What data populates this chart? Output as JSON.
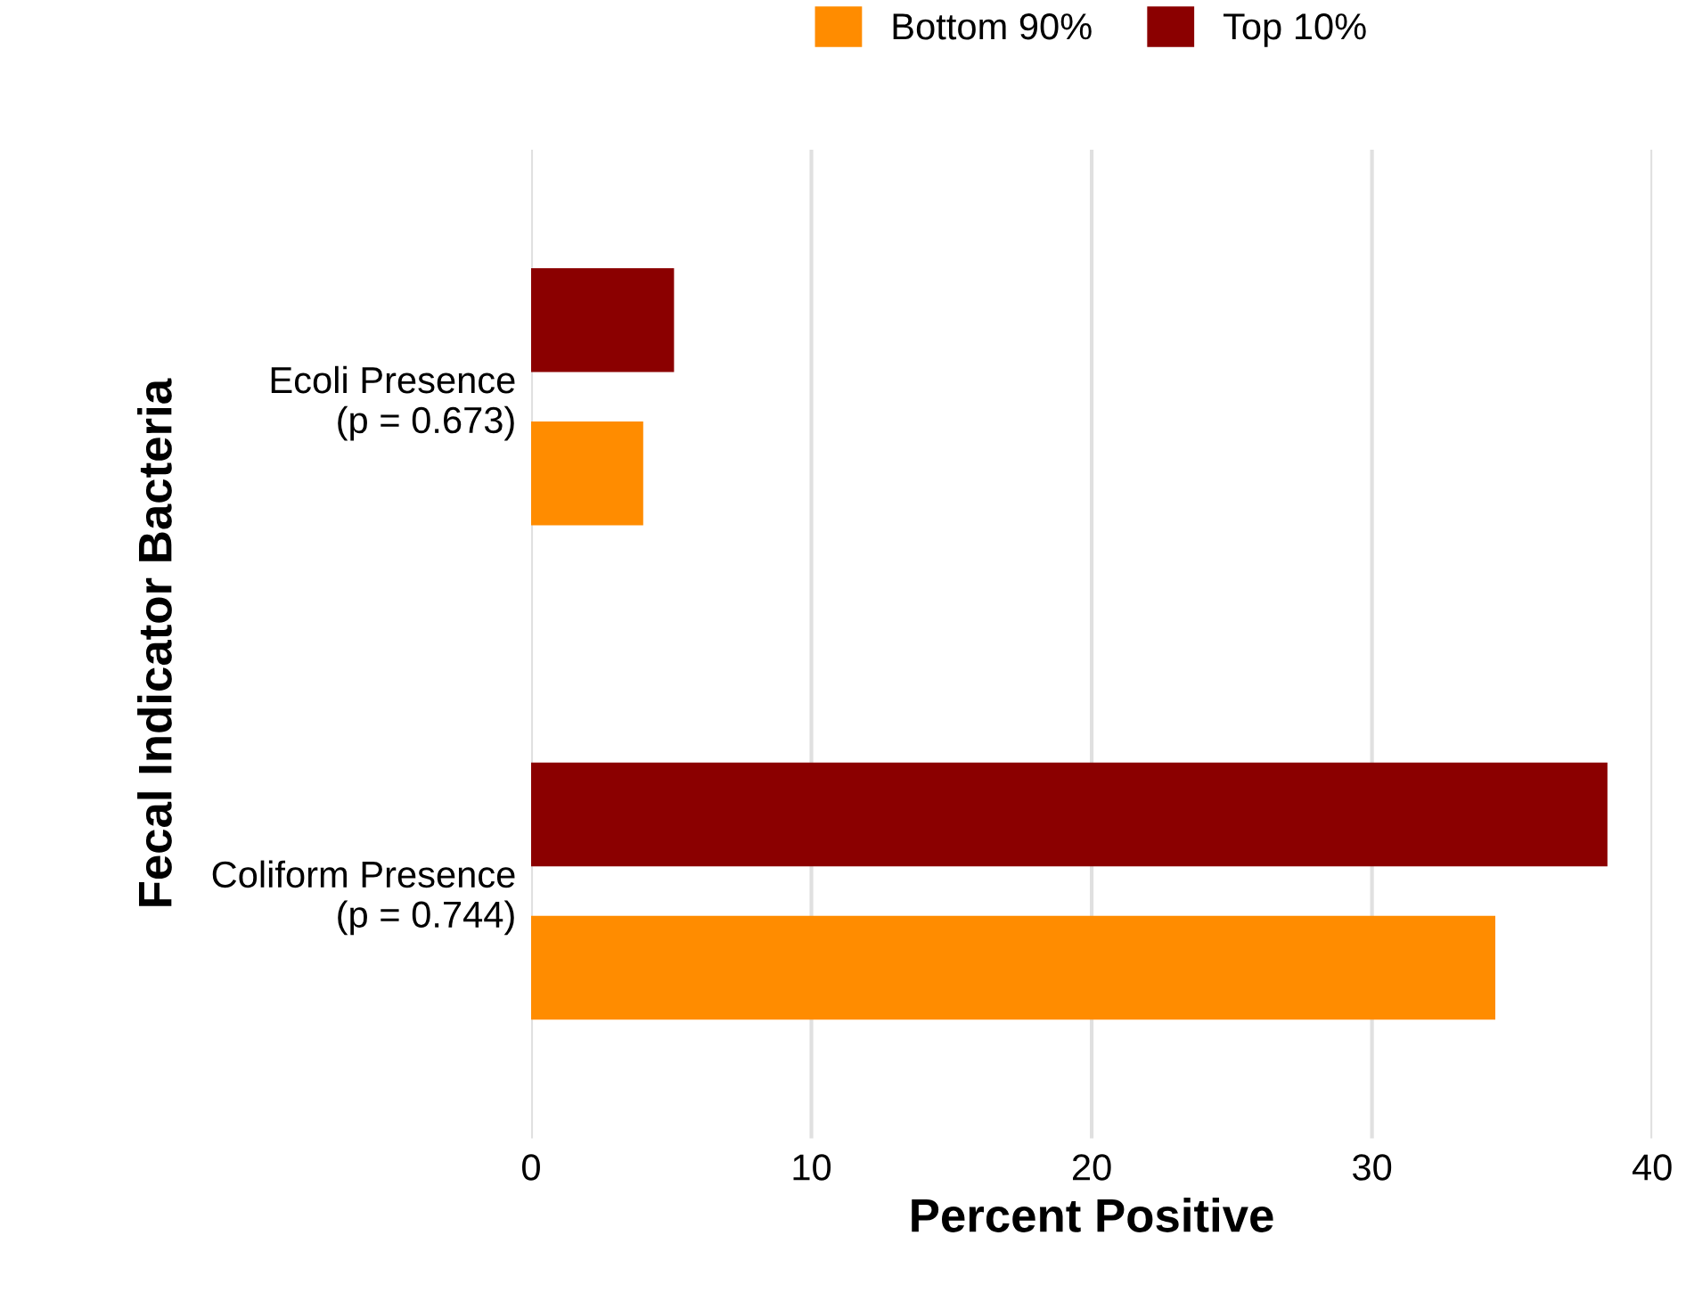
{
  "chart_data": {
    "type": "bar",
    "orientation": "horizontal",
    "xlabel": "Percent Positive",
    "ylabel": "Fecal Indicator Bacteria",
    "categories": [
      "Ecoli Presence\n(p = 0.673)",
      "Coliform Presence\n(p = 0.744)"
    ],
    "series": [
      {
        "name": "Bottom 90%",
        "color": "#ff8c00",
        "values": [
          4.0,
          34.4
        ]
      },
      {
        "name": "Top 10%",
        "color": "#8b0000",
        "values": [
          5.1,
          38.4
        ]
      }
    ],
    "xlim": [
      0,
      40
    ],
    "xticks": [
      0,
      10,
      20,
      30,
      40
    ],
    "grid": "x",
    "legend": "top"
  }
}
